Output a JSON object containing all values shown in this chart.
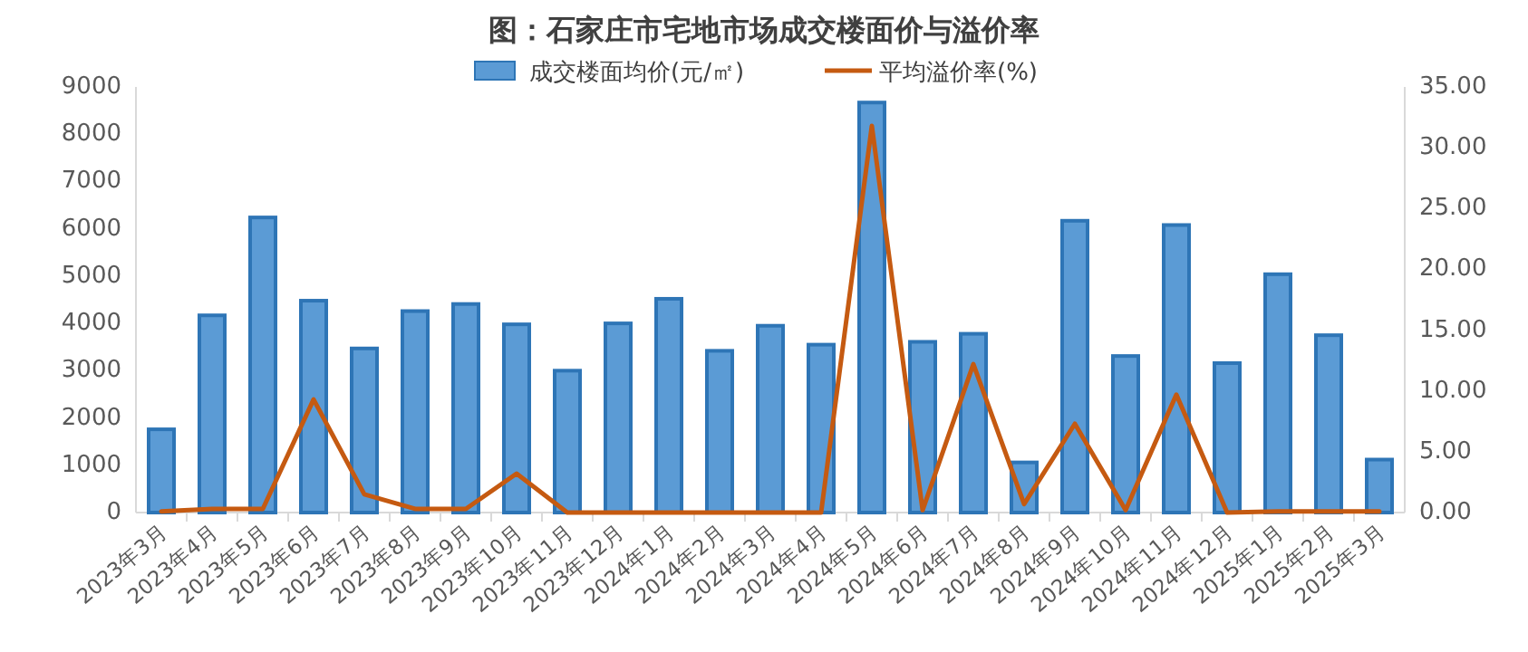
{
  "chart_data": {
    "type": "bar",
    "title": "图：石家庄市宅地市场成交楼面价与溢价率",
    "categories": [
      "2023年3月",
      "2023年4月",
      "2023年5月",
      "2023年6月",
      "2023年7月",
      "2023年8月",
      "2023年9月",
      "2023年10月",
      "2023年11月",
      "2023年12月",
      "2024年1月",
      "2024年2月",
      "2024年3月",
      "2024年4月",
      "2024年5月",
      "2024年6月",
      "2024年7月",
      "2024年8月",
      "2024年9月",
      "2024年10月",
      "2024年11月",
      "2024年12月",
      "2025年1月",
      "2025年2月",
      "2025年3月"
    ],
    "series": [
      {
        "name": "成交楼面均价(元/㎡)",
        "color": "#5b9bd5",
        "values": [
          1760,
          4170,
          6240,
          4480,
          3470,
          4260,
          4410,
          3980,
          3000,
          4000,
          4520,
          3420,
          3950,
          3550,
          8670,
          3610,
          3780,
          1060,
          6170,
          3310,
          6080,
          3160,
          5040,
          3750,
          1120
        ]
      },
      {
        "name": "平均溢价率(%)",
        "type": "line",
        "axis": "y2",
        "color": "#c55a11",
        "values": [
          0.1,
          0.3,
          0.3,
          9.3,
          1.5,
          0.3,
          0.3,
          3.2,
          0,
          0,
          0,
          0,
          0,
          0,
          31.8,
          0.2,
          12.2,
          0.7,
          7.3,
          0.2,
          9.7,
          0,
          0.1,
          0.1,
          0.1
        ]
      }
    ],
    "ylim": [
      0,
      9000
    ],
    "yticks": [
      0,
      1000,
      2000,
      3000,
      4000,
      5000,
      6000,
      7000,
      8000,
      9000
    ],
    "y2lim": [
      0,
      35
    ],
    "y2ticks": [
      {
        "value": 0,
        "label": "0.00"
      },
      {
        "value": 5,
        "label": "5.00"
      },
      {
        "value": 10,
        "label": "10.00"
      },
      {
        "value": 15,
        "label": "15.00"
      },
      {
        "value": 20,
        "label": "20.00"
      },
      {
        "value": 25,
        "label": "25.00"
      },
      {
        "value": 30,
        "label": "30.00"
      },
      {
        "value": 35,
        "label": "35.00"
      }
    ],
    "legend": "top"
  }
}
